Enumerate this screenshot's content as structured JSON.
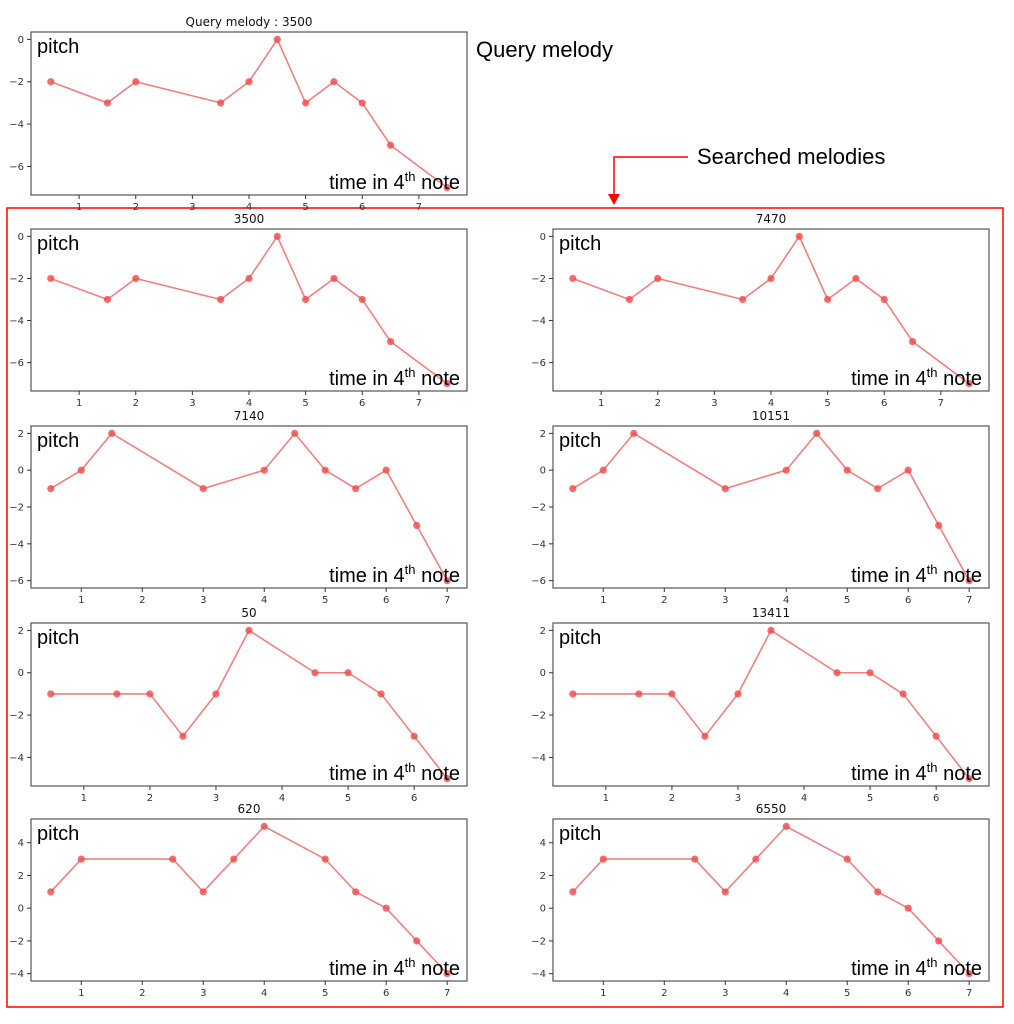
{
  "labels": {
    "query_heading": "Query melody",
    "searched_heading": "Searched melodies",
    "ylabel": "pitch",
    "xlabel_prefix": "time in 4",
    "xlabel_sup": "th",
    "xlabel_suffix": " note"
  },
  "colors": {
    "line": "#f08080",
    "marker": "#f04848",
    "highlight": "#ff0000",
    "axes": "#555555"
  },
  "chart_data": [
    {
      "type": "line",
      "title": "Query melody : 3500",
      "x": [
        0.5,
        1.5,
        2,
        3.5,
        4,
        4.5,
        5,
        5.5,
        6,
        6.5,
        7.5
      ],
      "y": [
        -2,
        -3,
        -2,
        -3,
        -2,
        0,
        -3,
        -2,
        -3,
        -5,
        -7
      ],
      "xticks": [
        1,
        2,
        3,
        4,
        5,
        6,
        7
      ],
      "yticks": [
        0,
        -2,
        -4,
        -6
      ],
      "xlabel": "time in 4th note",
      "ylabel": "pitch"
    },
    {
      "type": "line",
      "title": "3500",
      "x": [
        0.5,
        1.5,
        2,
        3.5,
        4,
        4.5,
        5,
        5.5,
        6,
        6.5,
        7.5
      ],
      "y": [
        -2,
        -3,
        -2,
        -3,
        -2,
        0,
        -3,
        -2,
        -3,
        -5,
        -7
      ],
      "xticks": [
        1,
        2,
        3,
        4,
        5,
        6,
        7
      ],
      "yticks": [
        0,
        -2,
        -4,
        -6
      ],
      "xlabel": "time in 4th note",
      "ylabel": "pitch"
    },
    {
      "type": "line",
      "title": "7470",
      "x": [
        0.5,
        1.5,
        2,
        3.5,
        4,
        4.5,
        5,
        5.5,
        6,
        6.5,
        7.5
      ],
      "y": [
        -2,
        -3,
        -2,
        -3,
        -2,
        0,
        -3,
        -2,
        -3,
        -5,
        -7
      ],
      "xticks": [
        1,
        2,
        3,
        4,
        5,
        6,
        7
      ],
      "yticks": [
        0,
        -2,
        -4,
        -6
      ],
      "xlabel": "time in 4th note",
      "ylabel": "pitch"
    },
    {
      "type": "line",
      "title": "7140",
      "x": [
        0.5,
        1,
        1.5,
        3,
        4,
        4.5,
        5,
        5.5,
        6,
        6.5,
        7
      ],
      "y": [
        -1,
        0,
        2,
        -1,
        0,
        2,
        0,
        -1,
        0,
        -3,
        -6
      ],
      "xticks": [
        1,
        2,
        3,
        4,
        5,
        6,
        7
      ],
      "yticks": [
        2,
        0,
        -2,
        -4,
        -6
      ],
      "xlabel": "time in 4th note",
      "ylabel": "pitch"
    },
    {
      "type": "line",
      "title": "10151",
      "x": [
        0.5,
        1,
        1.5,
        3,
        4,
        4.5,
        5,
        5.5,
        6,
        6.5,
        7
      ],
      "y": [
        -1,
        0,
        2,
        -1,
        0,
        2,
        0,
        -1,
        0,
        -3,
        -6
      ],
      "xticks": [
        1,
        2,
        3,
        4,
        5,
        6,
        7
      ],
      "yticks": [
        2,
        0,
        -2,
        -4,
        -6
      ],
      "xlabel": "time in 4th note",
      "ylabel": "pitch"
    },
    {
      "type": "line",
      "title": "50",
      "x": [
        0.5,
        1.5,
        2,
        2.5,
        3,
        3.5,
        4.5,
        5,
        5.5,
        6,
        6.5
      ],
      "y": [
        -1,
        -1,
        -1,
        -3,
        -1,
        2,
        0,
        0,
        -1,
        -3,
        -5
      ],
      "xticks": [
        1,
        2,
        3,
        4,
        5,
        6
      ],
      "yticks": [
        2,
        0,
        -2,
        -4
      ],
      "xlabel": "time in 4th note",
      "ylabel": "pitch"
    },
    {
      "type": "line",
      "title": "13411",
      "x": [
        0.5,
        1.5,
        2,
        2.5,
        3,
        3.5,
        4.5,
        5,
        5.5,
        6,
        6.5
      ],
      "y": [
        -1,
        -1,
        -1,
        -3,
        -1,
        2,
        0,
        0,
        -1,
        -3,
        -5
      ],
      "xticks": [
        1,
        2,
        3,
        4,
        5,
        6
      ],
      "yticks": [
        2,
        0,
        -2,
        -4
      ],
      "xlabel": "time in 4th note",
      "ylabel": "pitch"
    },
    {
      "type": "line",
      "title": "620",
      "x": [
        0.5,
        1,
        2.5,
        3,
        3.5,
        4,
        5,
        5.5,
        6,
        6.5,
        7
      ],
      "y": [
        1,
        3,
        3,
        1,
        3,
        5,
        3,
        1,
        0,
        -2,
        -4
      ],
      "xticks": [
        1,
        2,
        3,
        4,
        5,
        6,
        7
      ],
      "yticks": [
        4,
        2,
        0,
        -2,
        -4
      ],
      "xlabel": "time in 4th note",
      "ylabel": "pitch"
    },
    {
      "type": "line",
      "title": "6550",
      "x": [
        0.5,
        1,
        2.5,
        3,
        3.5,
        4,
        5,
        5.5,
        6,
        6.5,
        7
      ],
      "y": [
        1,
        3,
        3,
        1,
        3,
        5,
        3,
        1,
        0,
        -2,
        -4
      ],
      "xticks": [
        1,
        2,
        3,
        4,
        5,
        6,
        7
      ],
      "yticks": [
        4,
        2,
        0,
        -2,
        -4
      ],
      "xlabel": "time in 4th note",
      "ylabel": "pitch"
    }
  ]
}
